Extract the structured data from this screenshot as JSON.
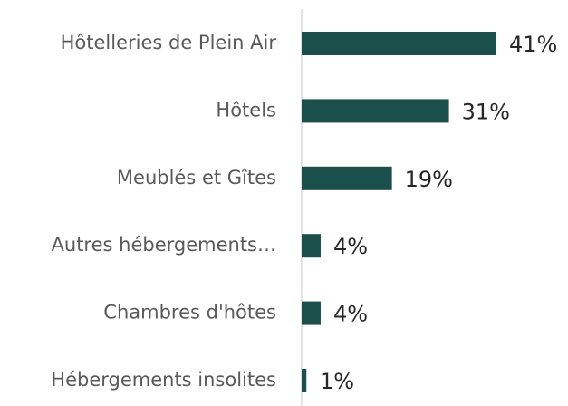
{
  "chart_data": {
    "type": "barh",
    "categories": [
      "Hôtelleries de Plein Air",
      "Hôtels",
      "Meublés et Gîtes",
      "Autres hébergements…",
      "Chambres d'hôtes",
      "Hébergements insolites"
    ],
    "values": [
      41,
      31,
      19,
      4,
      4,
      1
    ],
    "value_labels": [
      "41%",
      "31%",
      "19%",
      "4%",
      "4%",
      "1%"
    ],
    "color": "#1b4f4c",
    "xlim": [
      0,
      45
    ]
  }
}
